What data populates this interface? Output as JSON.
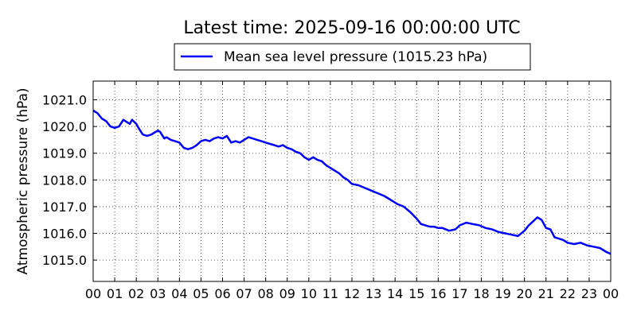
{
  "chart_data": {
    "type": "line",
    "title": "Latest time: 2025-09-16 00:00:00 UTC",
    "xlabel": "",
    "ylabel": "Atmospheric pressure (hPa)",
    "x_tick_labels": [
      "00",
      "01",
      "02",
      "03",
      "04",
      "05",
      "06",
      "07",
      "08",
      "09",
      "10",
      "11",
      "12",
      "13",
      "14",
      "15",
      "16",
      "17",
      "18",
      "19",
      "20",
      "21",
      "22",
      "23",
      "00"
    ],
    "xlim": [
      0,
      24
    ],
    "ylim": [
      1014.2,
      1021.7
    ],
    "y_ticks": [
      1015.0,
      1016.0,
      1017.0,
      1018.0,
      1019.0,
      1020.0,
      1021.0
    ],
    "y_tick_labels": [
      "1015.0",
      "1016.0",
      "1017.0",
      "1018.0",
      "1019.0",
      "1020.0",
      "1021.0"
    ],
    "grid": true,
    "legend_position": "top-center",
    "series": [
      {
        "name": "Mean sea level pressure (1015.23 hPa)",
        "color": "#0000ff",
        "x": [
          0.0,
          0.2,
          0.4,
          0.6,
          0.8,
          1.0,
          1.2,
          1.4,
          1.5,
          1.7,
          1.8,
          2.0,
          2.1,
          2.3,
          2.5,
          2.7,
          3.0,
          3.1,
          3.3,
          3.4,
          3.6,
          3.8,
          4.0,
          4.2,
          4.4,
          4.6,
          4.8,
          5.0,
          5.2,
          5.4,
          5.6,
          5.8,
          6.0,
          6.2,
          6.4,
          6.6,
          6.8,
          7.0,
          7.2,
          7.4,
          7.6,
          7.8,
          8.0,
          8.2,
          8.4,
          8.6,
          8.8,
          9.0,
          9.2,
          9.4,
          9.6,
          9.8,
          10.0,
          10.2,
          10.4,
          10.6,
          10.8,
          11.0,
          11.2,
          11.4,
          11.6,
          11.8,
          12.0,
          12.3,
          12.6,
          12.9,
          13.2,
          13.5,
          13.8,
          14.1,
          14.4,
          14.7,
          15.0,
          15.2,
          15.4,
          15.6,
          15.8,
          16.0,
          16.2,
          16.5,
          16.8,
          17.0,
          17.3,
          17.6,
          17.9,
          18.2,
          18.5,
          18.8,
          19.1,
          19.4,
          19.7,
          20.0,
          20.2,
          20.4,
          20.6,
          20.8,
          21.0,
          21.2,
          21.4,
          21.6,
          21.8,
          22.0,
          22.3,
          22.6,
          22.9,
          23.2,
          23.5,
          23.8,
          24.0
        ],
        "y": [
          1020.6,
          1020.5,
          1020.3,
          1020.2,
          1020.0,
          1019.95,
          1020.0,
          1020.25,
          1020.2,
          1020.1,
          1020.25,
          1020.1,
          1019.95,
          1019.7,
          1019.65,
          1019.7,
          1019.85,
          1019.8,
          1019.55,
          1019.6,
          1019.5,
          1019.45,
          1019.4,
          1019.2,
          1019.15,
          1019.2,
          1019.3,
          1019.45,
          1019.5,
          1019.45,
          1019.55,
          1019.6,
          1019.55,
          1019.65,
          1019.4,
          1019.45,
          1019.4,
          1019.5,
          1019.6,
          1019.55,
          1019.5,
          1019.45,
          1019.4,
          1019.35,
          1019.3,
          1019.25,
          1019.3,
          1019.2,
          1019.15,
          1019.05,
          1019.0,
          1018.85,
          1018.75,
          1018.85,
          1018.75,
          1018.7,
          1018.55,
          1018.45,
          1018.35,
          1018.25,
          1018.1,
          1018.0,
          1017.85,
          1017.8,
          1017.7,
          1017.6,
          1017.5,
          1017.4,
          1017.25,
          1017.1,
          1017.0,
          1016.8,
          1016.55,
          1016.35,
          1016.3,
          1016.25,
          1016.25,
          1016.2,
          1016.2,
          1016.1,
          1016.15,
          1016.3,
          1016.4,
          1016.35,
          1016.3,
          1016.2,
          1016.15,
          1016.05,
          1016.0,
          1015.95,
          1015.9,
          1016.1,
          1016.3,
          1016.45,
          1016.6,
          1016.5,
          1016.2,
          1016.15,
          1015.85,
          1015.8,
          1015.75,
          1015.65,
          1015.6,
          1015.65,
          1015.55,
          1015.5,
          1015.45,
          1015.3,
          1015.23
        ]
      }
    ]
  }
}
